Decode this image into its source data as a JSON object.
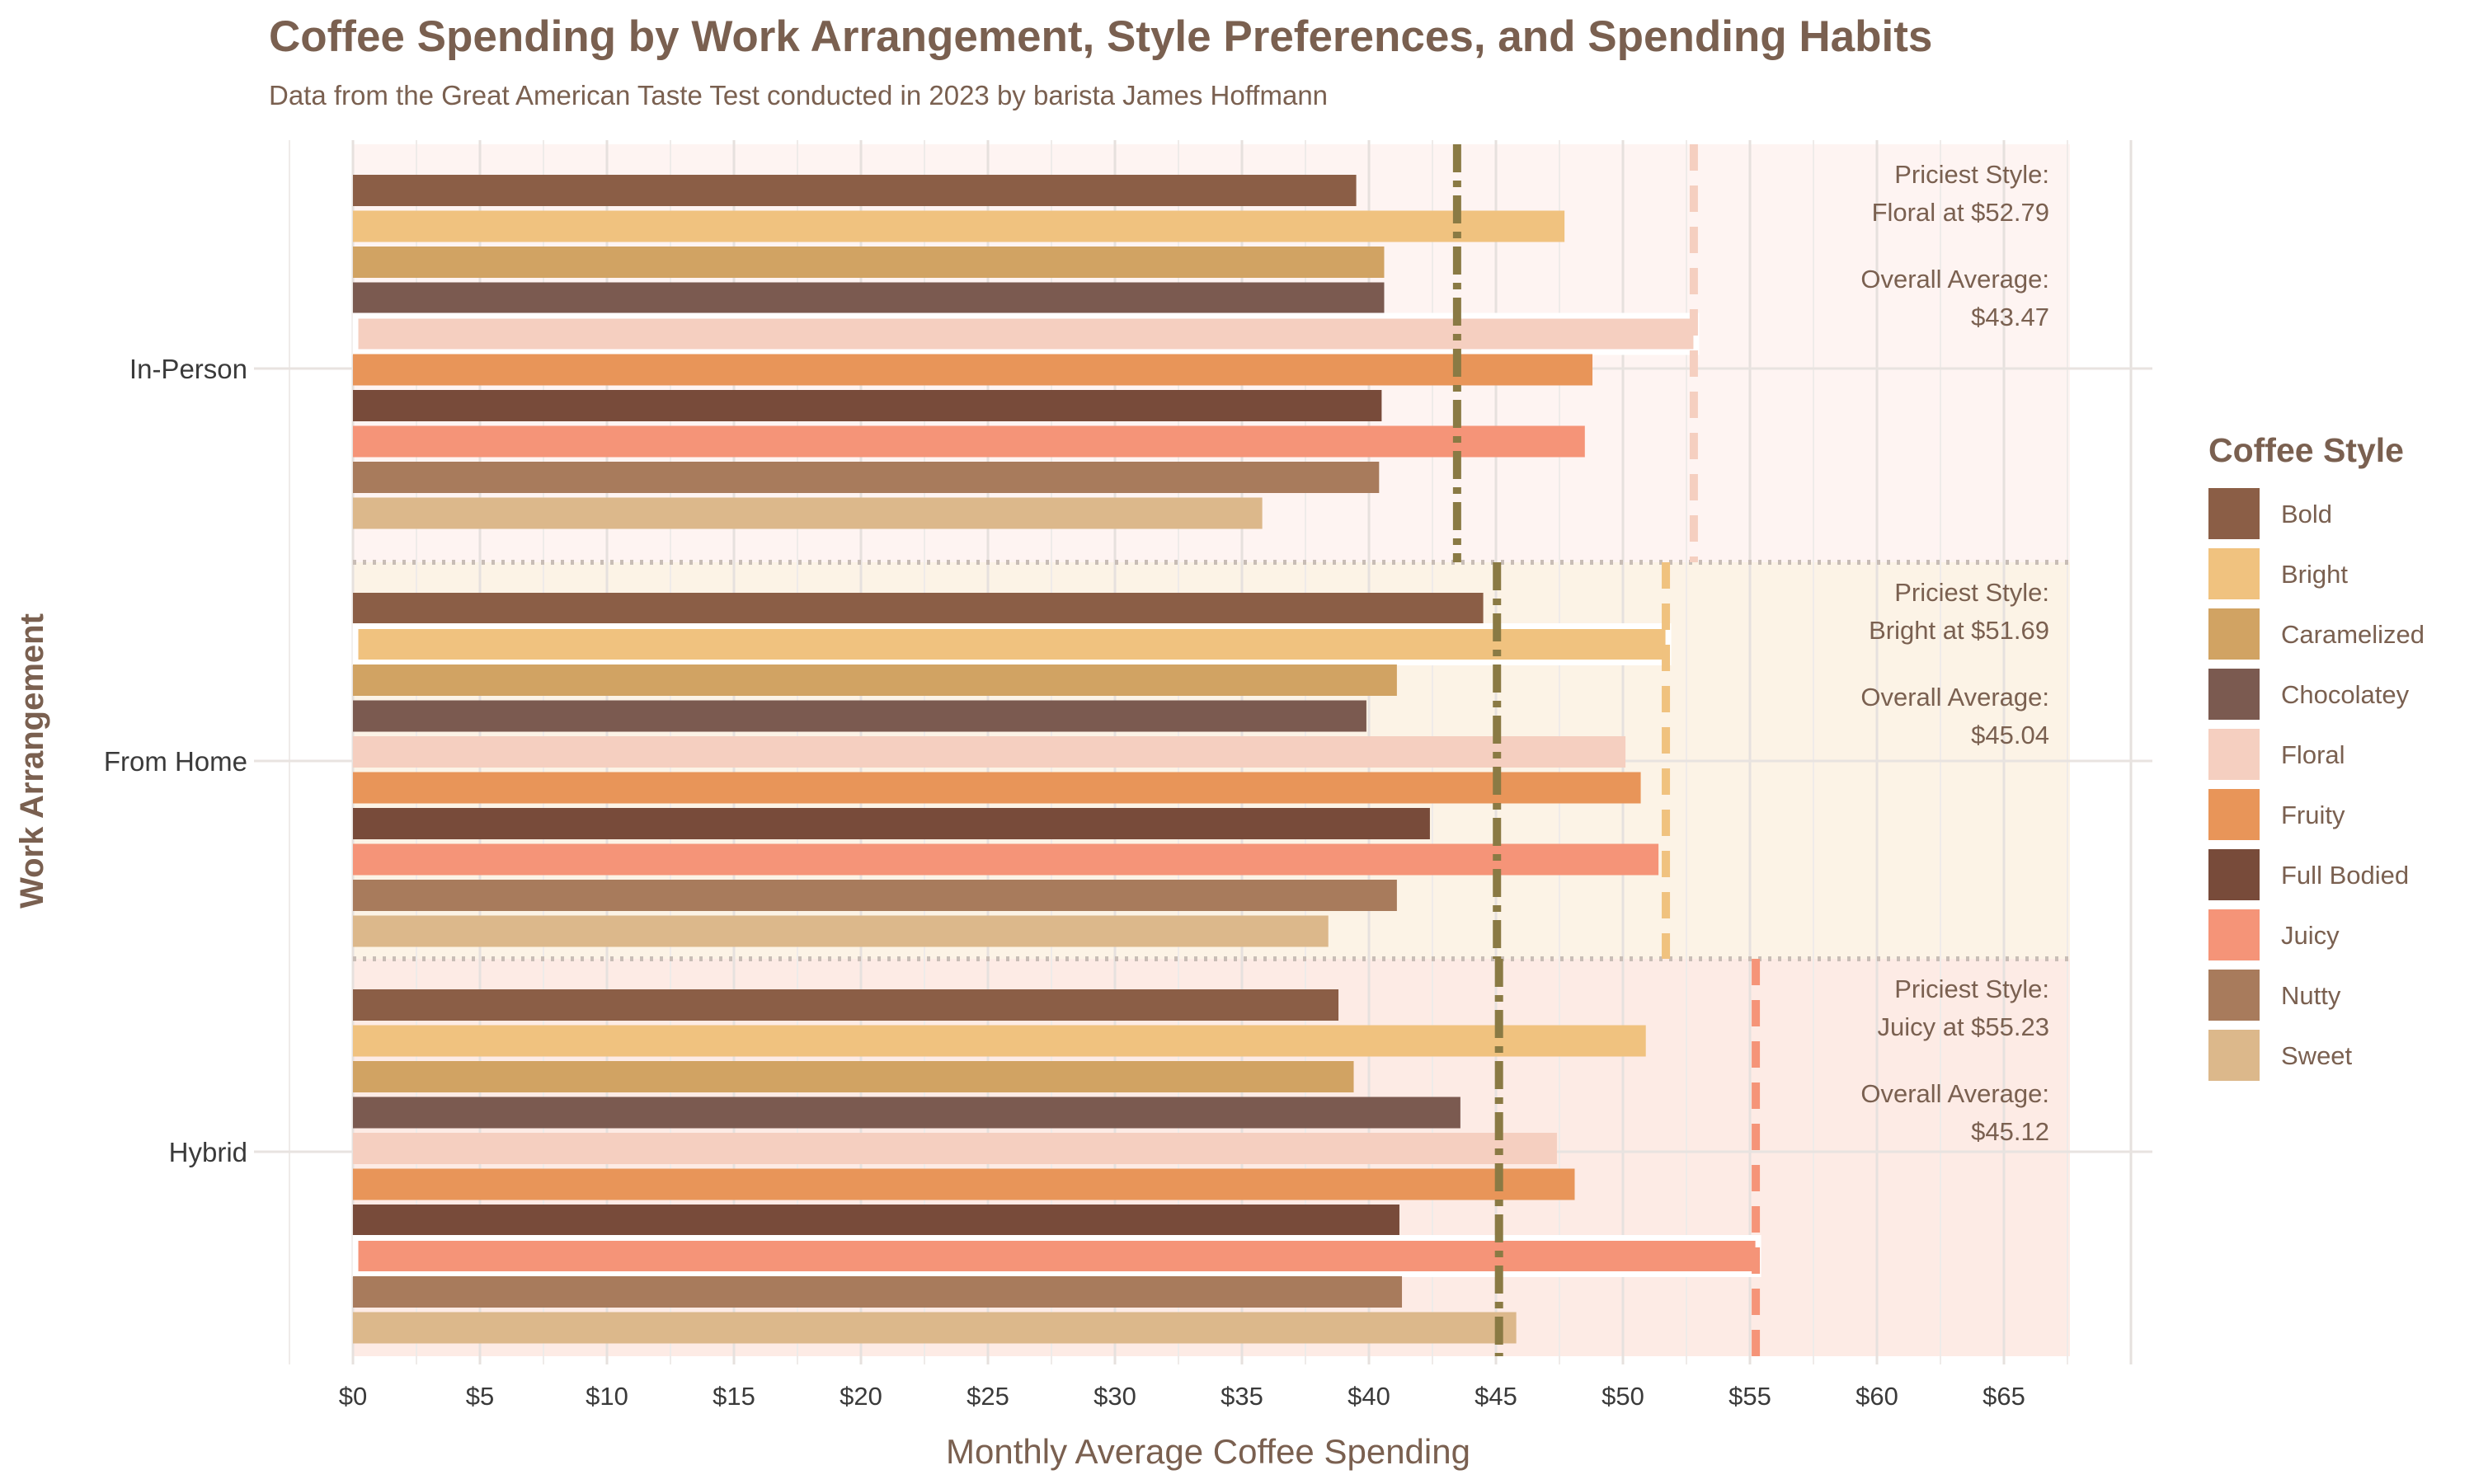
{
  "chart_data": {
    "type": "bar",
    "orientation": "horizontal",
    "title": "Coffee Spending by Work Arrangement, Style Preferences, and Spending Habits",
    "subtitle": "Data from the Great American Taste Test conducted in 2023 by barista James Hoffmann",
    "xlabel": "Monthly Average Coffee Spending",
    "ylabel": "Work Arrangement",
    "xlim": [
      -2.5,
      70
    ],
    "x_ticks": [
      "$0",
      "$5",
      "$10",
      "$15",
      "$20",
      "$25",
      "$30",
      "$35",
      "$40",
      "$45",
      "$50",
      "$55",
      "$60",
      "$65"
    ],
    "x_tick_values": [
      0,
      5,
      10,
      15,
      20,
      25,
      30,
      35,
      40,
      45,
      50,
      55,
      60,
      65
    ],
    "categories": [
      "In-Person",
      "From Home",
      "Hybrid"
    ],
    "legend_title": "Coffee Style",
    "legend_position": "right",
    "grid": true,
    "styles": [
      {
        "name": "Bold",
        "color": "#8B5E46"
      },
      {
        "name": "Bright",
        "color": "#F0C27F"
      },
      {
        "name": "Caramelized",
        "color": "#D1A363"
      },
      {
        "name": "Chocolatey",
        "color": "#7B5A50"
      },
      {
        "name": "Floral",
        "color": "#F5CFC0"
      },
      {
        "name": "Fruity",
        "color": "#E89559"
      },
      {
        "name": "Full Bodied",
        "color": "#784B3A"
      },
      {
        "name": "Juicy",
        "color": "#F59478"
      },
      {
        "name": "Nutty",
        "color": "#A87B5C"
      },
      {
        "name": "Sweet",
        "color": "#DCB88B"
      }
    ],
    "panels": [
      {
        "category": "In-Person",
        "values": [
          39.5,
          47.7,
          40.6,
          40.6,
          52.79,
          48.8,
          40.5,
          48.5,
          40.4,
          35.8
        ],
        "priciest_index": 4,
        "overall_average": 43.47,
        "priciest_max": 52.79,
        "bg_color": "#FEF4F2",
        "priciest_line_color": "#F5CFC0",
        "annotation_line1": "Priciest Style:",
        "annotation_line2": "Floral at $52.79",
        "annotation_line3": "Overall Average:",
        "annotation_line4": "$43.47"
      },
      {
        "category": "From Home",
        "values": [
          44.5,
          51.69,
          41.1,
          39.9,
          50.1,
          50.7,
          42.4,
          51.4,
          41.1,
          38.4
        ],
        "priciest_index": 1,
        "overall_average": 45.04,
        "priciest_max": 51.69,
        "bg_color": "#FCF3E6",
        "priciest_line_color": "#F0C27F",
        "annotation_line1": "Priciest Style:",
        "annotation_line2": "Bright at $51.69",
        "annotation_line3": "Overall Average:",
        "annotation_line4": "$45.04"
      },
      {
        "category": "Hybrid",
        "values": [
          38.8,
          50.9,
          39.4,
          43.6,
          47.4,
          48.1,
          41.2,
          55.23,
          41.3,
          45.8
        ],
        "priciest_index": 7,
        "overall_average": 45.12,
        "priciest_max": 55.23,
        "bg_color": "#FDEBE5",
        "priciest_line_color": "#F59478",
        "annotation_line1": "Priciest Style:",
        "annotation_line2": "Juicy at $55.23",
        "annotation_line3": "Overall Average:",
        "annotation_line4": "$45.12"
      }
    ],
    "average_line_color": "#8A7A44",
    "text_color": "#7A6050",
    "axis_text_color": "#3A3A3A"
  }
}
